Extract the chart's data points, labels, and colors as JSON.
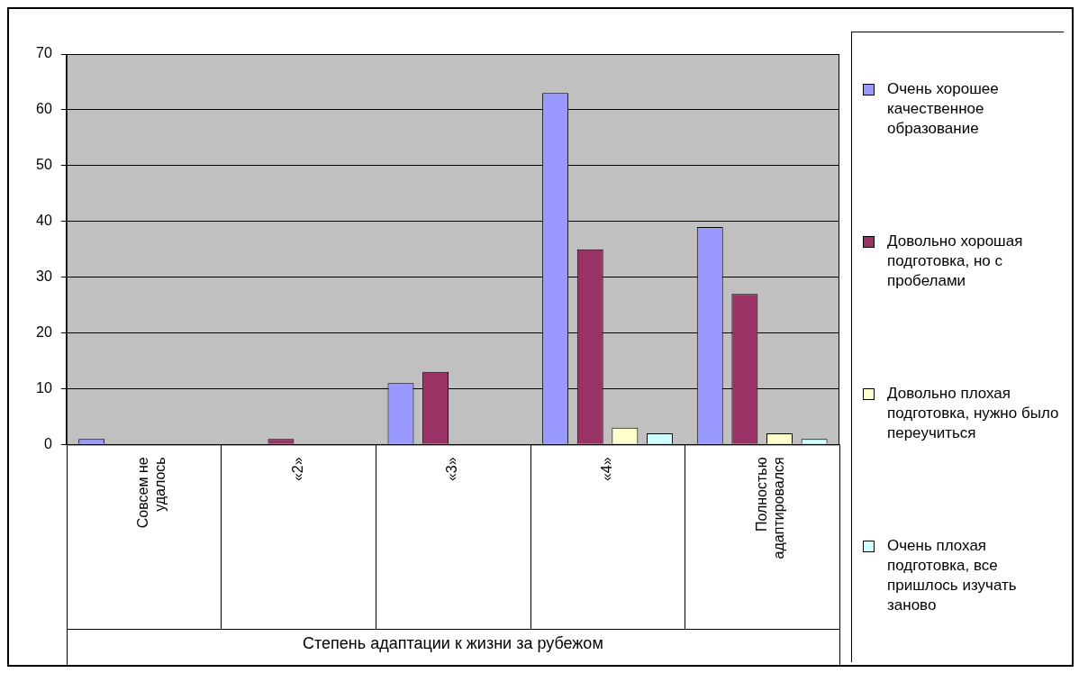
{
  "chart_data": {
    "type": "bar",
    "xlabel": "Степень адаптации к жизни за рубежом",
    "categories": [
      "Совсем не удалось",
      "«2»",
      "«3»",
      "«4»",
      "Полностью адаптировался"
    ],
    "series": [
      {
        "name": "Очень хорошее качественное образование",
        "color": "#9999ff",
        "values": [
          1,
          0,
          11,
          63,
          39
        ]
      },
      {
        "name": "Довольно хорошая подготовка, но с пробелами",
        "color": "#993366",
        "values": [
          0,
          1,
          13,
          35,
          27
        ]
      },
      {
        "name": "Довольно плохая подготовка, нужно было переучиться",
        "color": "#ffffcc",
        "values": [
          0,
          0,
          0,
          3,
          2
        ]
      },
      {
        "name": "Очень плохая подготовка, все пришлось изучать заново",
        "color": "#ccffff",
        "values": [
          0,
          0,
          0,
          2,
          1
        ]
      }
    ],
    "ylim": [
      0,
      70
    ],
    "yticks": [
      0,
      10,
      20,
      30,
      40,
      50,
      60,
      70
    ],
    "grid": "y",
    "legend": "right"
  }
}
